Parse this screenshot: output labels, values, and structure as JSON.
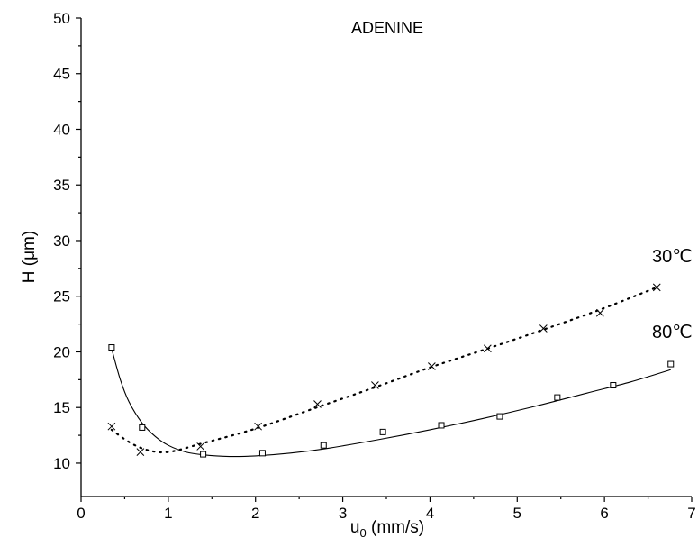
{
  "chart_data": {
    "type": "scatter",
    "title": "ADENINE",
    "xlabel": {
      "main": "u",
      "sub": "0",
      "rest": " (mm/s)"
    },
    "ylabel": "H (μm)",
    "xlim": [
      0,
      7
    ],
    "ylim": [
      7,
      50
    ],
    "x_ticks": [
      0,
      1,
      2,
      3,
      4,
      5,
      6,
      7
    ],
    "y_ticks": [
      10,
      15,
      20,
      25,
      30,
      35,
      40,
      45,
      50
    ],
    "grid": false,
    "series": [
      {
        "name": "30℃",
        "marker": "x",
        "line_style": "dotted",
        "points": [
          [
            0.35,
            13.3
          ],
          [
            0.68,
            11.0
          ],
          [
            1.37,
            11.5
          ],
          [
            2.03,
            13.3
          ],
          [
            2.71,
            15.3
          ],
          [
            3.37,
            17.0
          ],
          [
            4.02,
            18.7
          ],
          [
            4.66,
            20.3
          ],
          [
            5.3,
            22.1
          ],
          [
            5.95,
            23.5
          ],
          [
            6.6,
            25.8
          ]
        ],
        "fit": [
          [
            0.35,
            13.0
          ],
          [
            0.55,
            11.9
          ],
          [
            0.75,
            11.2
          ],
          [
            1.0,
            11.0
          ],
          [
            1.4,
            11.8
          ],
          [
            2.0,
            13.1
          ],
          [
            2.7,
            15.0
          ],
          [
            3.4,
            16.9
          ],
          [
            4.0,
            18.6
          ],
          [
            4.7,
            20.4
          ],
          [
            5.3,
            22.0
          ],
          [
            5.95,
            23.8
          ],
          [
            6.6,
            25.8
          ]
        ]
      },
      {
        "name": "80℃",
        "marker": "square",
        "line_style": "solid",
        "points": [
          [
            0.35,
            20.4
          ],
          [
            0.7,
            13.2
          ],
          [
            1.4,
            10.8
          ],
          [
            2.08,
            10.9
          ],
          [
            2.78,
            11.6
          ],
          [
            3.46,
            12.8
          ],
          [
            4.13,
            13.4
          ],
          [
            4.8,
            14.2
          ],
          [
            5.46,
            15.9
          ],
          [
            6.1,
            17.0
          ],
          [
            6.76,
            18.9
          ]
        ],
        "fit": [
          [
            0.35,
            20.3
          ],
          [
            0.45,
            17.5
          ],
          [
            0.55,
            15.5
          ],
          [
            0.7,
            13.6
          ],
          [
            0.85,
            12.4
          ],
          [
            1.0,
            11.6
          ],
          [
            1.2,
            11.0
          ],
          [
            1.4,
            10.75
          ],
          [
            1.7,
            10.6
          ],
          [
            2.0,
            10.65
          ],
          [
            2.4,
            10.9
          ],
          [
            2.8,
            11.3
          ],
          [
            3.4,
            12.1
          ],
          [
            4.0,
            13.0
          ],
          [
            4.6,
            14.0
          ],
          [
            5.2,
            15.1
          ],
          [
            5.8,
            16.3
          ],
          [
            6.3,
            17.3
          ],
          [
            6.76,
            18.4
          ]
        ]
      }
    ]
  }
}
